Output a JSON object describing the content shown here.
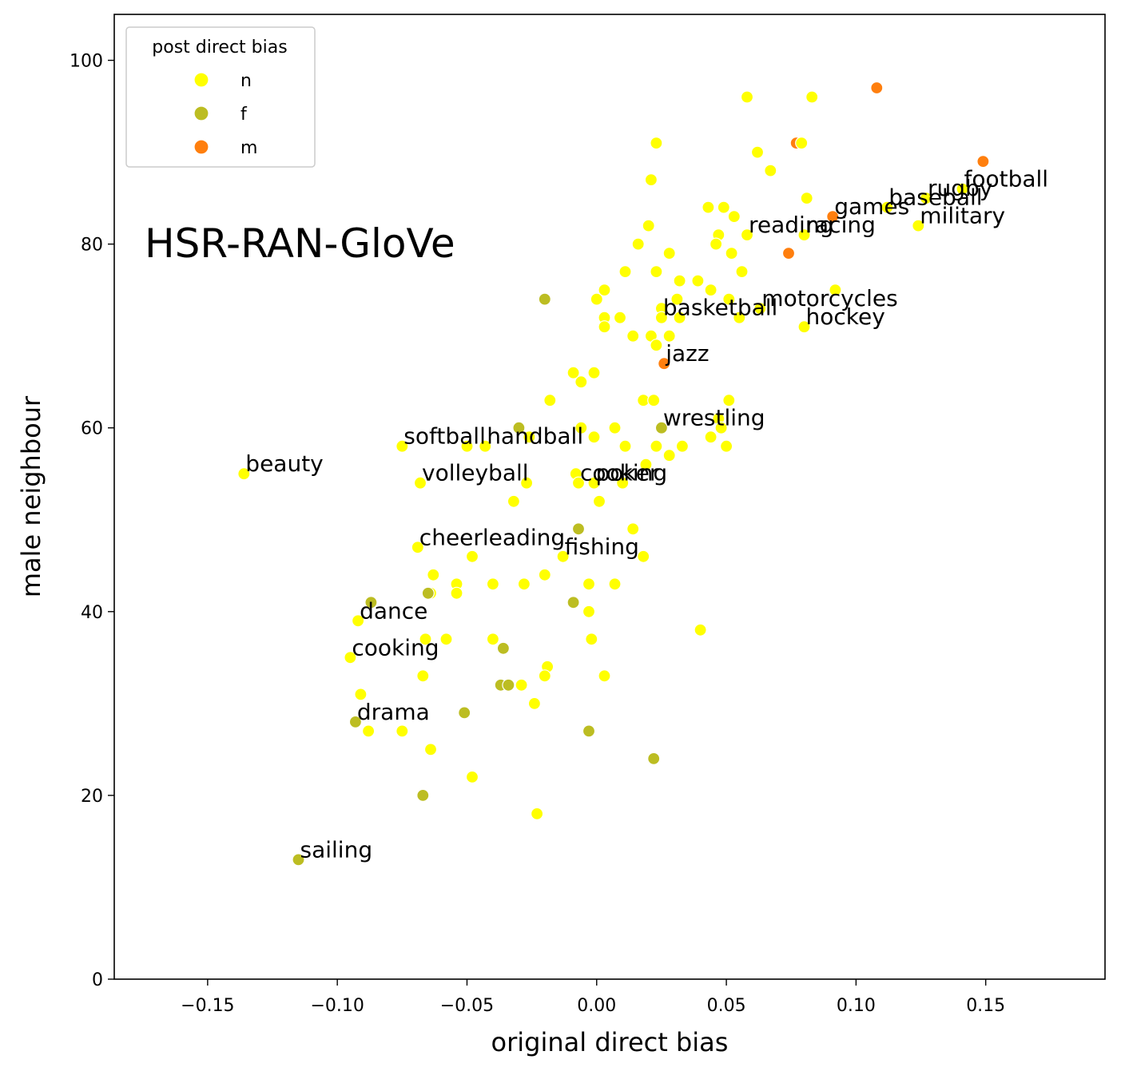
{
  "chart_data": {
    "type": "scatter",
    "title": "HSR-RAN-GloVe",
    "xlabel": "original direct bias",
    "ylabel": "male neighbour",
    "xlim": [
      -0.186,
      0.196
    ],
    "ylim": [
      0,
      105
    ],
    "xticks": [
      -0.15,
      -0.1,
      -0.05,
      0.0,
      0.05,
      0.1,
      0.15
    ],
    "xtick_labels": [
      "−0.15",
      "−0.10",
      "−0.05",
      "0.00",
      "0.05",
      "0.10",
      "0.15"
    ],
    "yticks": [
      0,
      20,
      40,
      60,
      80,
      100
    ],
    "ytick_labels": [
      "0",
      "20",
      "40",
      "60",
      "80",
      "100"
    ],
    "grid": false,
    "legend": {
      "title": "post direct bias",
      "placement": "top-left",
      "entries": [
        {
          "key": "n",
          "label": "n",
          "color": "#ffff00"
        },
        {
          "key": "f",
          "label": "f",
          "color": "#bcbd22"
        },
        {
          "key": "m",
          "label": "m",
          "color": "#ff7f0e"
        }
      ]
    },
    "points": [
      {
        "x": 0.108,
        "y": 97,
        "c": "m"
      },
      {
        "x": 0.149,
        "y": 89,
        "c": "m"
      },
      {
        "x": 0.077,
        "y": 91,
        "c": "m"
      },
      {
        "x": 0.091,
        "y": 83,
        "c": "m"
      },
      {
        "x": 0.074,
        "y": 79,
        "c": "m"
      },
      {
        "x": 0.026,
        "y": 67,
        "c": "m"
      },
      {
        "x": 0.058,
        "y": 96,
        "c": "n"
      },
      {
        "x": 0.083,
        "y": 96,
        "c": "n"
      },
      {
        "x": 0.023,
        "y": 91,
        "c": "n"
      },
      {
        "x": 0.079,
        "y": 91,
        "c": "n"
      },
      {
        "x": 0.062,
        "y": 90,
        "c": "n"
      },
      {
        "x": 0.067,
        "y": 88,
        "c": "n"
      },
      {
        "x": 0.021,
        "y": 87,
        "c": "n"
      },
      {
        "x": 0.141,
        "y": 86,
        "c": "n"
      },
      {
        "x": 0.081,
        "y": 85,
        "c": "n"
      },
      {
        "x": 0.127,
        "y": 85,
        "c": "n"
      },
      {
        "x": 0.043,
        "y": 84,
        "c": "n"
      },
      {
        "x": 0.049,
        "y": 84,
        "c": "n"
      },
      {
        "x": 0.112,
        "y": 84,
        "c": "n"
      },
      {
        "x": 0.053,
        "y": 83,
        "c": "n"
      },
      {
        "x": 0.02,
        "y": 82,
        "c": "n"
      },
      {
        "x": 0.124,
        "y": 82,
        "c": "n"
      },
      {
        "x": 0.047,
        "y": 81,
        "c": "n"
      },
      {
        "x": 0.058,
        "y": 81,
        "c": "n"
      },
      {
        "x": 0.08,
        "y": 81,
        "c": "n"
      },
      {
        "x": 0.016,
        "y": 80,
        "c": "n"
      },
      {
        "x": 0.046,
        "y": 80,
        "c": "n"
      },
      {
        "x": 0.028,
        "y": 79,
        "c": "n"
      },
      {
        "x": 0.052,
        "y": 79,
        "c": "n"
      },
      {
        "x": 0.011,
        "y": 77,
        "c": "n"
      },
      {
        "x": 0.023,
        "y": 77,
        "c": "n"
      },
      {
        "x": 0.056,
        "y": 77,
        "c": "n"
      },
      {
        "x": 0.032,
        "y": 76,
        "c": "n"
      },
      {
        "x": 0.039,
        "y": 76,
        "c": "n"
      },
      {
        "x": 0.003,
        "y": 75,
        "c": "n"
      },
      {
        "x": 0.044,
        "y": 75,
        "c": "n"
      },
      {
        "x": 0.092,
        "y": 75,
        "c": "n"
      },
      {
        "x": 0.0,
        "y": 74,
        "c": "n"
      },
      {
        "x": 0.031,
        "y": 74,
        "c": "n"
      },
      {
        "x": 0.051,
        "y": 74,
        "c": "n"
      },
      {
        "x": 0.025,
        "y": 73,
        "c": "n"
      },
      {
        "x": 0.063,
        "y": 73,
        "c": "n"
      },
      {
        "x": 0.003,
        "y": 72,
        "c": "n"
      },
      {
        "x": 0.009,
        "y": 72,
        "c": "n"
      },
      {
        "x": 0.025,
        "y": 72,
        "c": "n"
      },
      {
        "x": 0.032,
        "y": 72,
        "c": "n"
      },
      {
        "x": 0.055,
        "y": 72,
        "c": "n"
      },
      {
        "x": 0.003,
        "y": 71,
        "c": "n"
      },
      {
        "x": 0.08,
        "y": 71,
        "c": "n"
      },
      {
        "x": 0.014,
        "y": 70,
        "c": "n"
      },
      {
        "x": 0.021,
        "y": 70,
        "c": "n"
      },
      {
        "x": 0.028,
        "y": 70,
        "c": "n"
      },
      {
        "x": 0.023,
        "y": 69,
        "c": "n"
      },
      {
        "x": -0.009,
        "y": 66,
        "c": "n"
      },
      {
        "x": -0.001,
        "y": 66,
        "c": "n"
      },
      {
        "x": -0.006,
        "y": 65,
        "c": "n"
      },
      {
        "x": -0.018,
        "y": 63,
        "c": "n"
      },
      {
        "x": 0.018,
        "y": 63,
        "c": "n"
      },
      {
        "x": 0.022,
        "y": 63,
        "c": "n"
      },
      {
        "x": 0.051,
        "y": 63,
        "c": "n"
      },
      {
        "x": 0.047,
        "y": 61,
        "c": "n"
      },
      {
        "x": -0.006,
        "y": 60,
        "c": "n"
      },
      {
        "x": 0.007,
        "y": 60,
        "c": "n"
      },
      {
        "x": 0.048,
        "y": 60,
        "c": "n"
      },
      {
        "x": -0.026,
        "y": 59,
        "c": "n"
      },
      {
        "x": -0.001,
        "y": 59,
        "c": "n"
      },
      {
        "x": 0.044,
        "y": 59,
        "c": "n"
      },
      {
        "x": -0.075,
        "y": 58,
        "c": "n"
      },
      {
        "x": -0.05,
        "y": 58,
        "c": "n"
      },
      {
        "x": -0.043,
        "y": 58,
        "c": "n"
      },
      {
        "x": 0.011,
        "y": 58,
        "c": "n"
      },
      {
        "x": 0.023,
        "y": 58,
        "c": "n"
      },
      {
        "x": 0.033,
        "y": 58,
        "c": "n"
      },
      {
        "x": 0.05,
        "y": 58,
        "c": "n"
      },
      {
        "x": 0.028,
        "y": 57,
        "c": "n"
      },
      {
        "x": 0.019,
        "y": 56,
        "c": "n"
      },
      {
        "x": -0.136,
        "y": 55,
        "c": "n"
      },
      {
        "x": -0.008,
        "y": 55,
        "c": "n"
      },
      {
        "x": -0.068,
        "y": 54,
        "c": "n"
      },
      {
        "x": -0.027,
        "y": 54,
        "c": "n"
      },
      {
        "x": -0.007,
        "y": 54,
        "c": "n"
      },
      {
        "x": -0.001,
        "y": 54,
        "c": "n"
      },
      {
        "x": 0.01,
        "y": 54,
        "c": "n"
      },
      {
        "x": -0.032,
        "y": 52,
        "c": "n"
      },
      {
        "x": 0.001,
        "y": 52,
        "c": "n"
      },
      {
        "x": 0.014,
        "y": 49,
        "c": "n"
      },
      {
        "x": -0.069,
        "y": 47,
        "c": "n"
      },
      {
        "x": -0.048,
        "y": 46,
        "c": "n"
      },
      {
        "x": -0.013,
        "y": 46,
        "c": "n"
      },
      {
        "x": 0.018,
        "y": 46,
        "c": "n"
      },
      {
        "x": -0.063,
        "y": 44,
        "c": "n"
      },
      {
        "x": -0.02,
        "y": 44,
        "c": "n"
      },
      {
        "x": -0.054,
        "y": 43,
        "c": "n"
      },
      {
        "x": -0.04,
        "y": 43,
        "c": "n"
      },
      {
        "x": -0.028,
        "y": 43,
        "c": "n"
      },
      {
        "x": -0.003,
        "y": 43,
        "c": "n"
      },
      {
        "x": 0.007,
        "y": 43,
        "c": "n"
      },
      {
        "x": -0.064,
        "y": 42,
        "c": "n"
      },
      {
        "x": -0.054,
        "y": 42,
        "c": "n"
      },
      {
        "x": -0.003,
        "y": 40,
        "c": "n"
      },
      {
        "x": -0.092,
        "y": 39,
        "c": "n"
      },
      {
        "x": 0.04,
        "y": 38,
        "c": "n"
      },
      {
        "x": -0.066,
        "y": 37,
        "c": "n"
      },
      {
        "x": -0.058,
        "y": 37,
        "c": "n"
      },
      {
        "x": -0.04,
        "y": 37,
        "c": "n"
      },
      {
        "x": -0.002,
        "y": 37,
        "c": "n"
      },
      {
        "x": -0.095,
        "y": 35,
        "c": "n"
      },
      {
        "x": -0.019,
        "y": 34,
        "c": "n"
      },
      {
        "x": -0.067,
        "y": 33,
        "c": "n"
      },
      {
        "x": -0.02,
        "y": 33,
        "c": "n"
      },
      {
        "x": 0.003,
        "y": 33,
        "c": "n"
      },
      {
        "x": -0.029,
        "y": 32,
        "c": "n"
      },
      {
        "x": -0.091,
        "y": 31,
        "c": "n"
      },
      {
        "x": -0.024,
        "y": 30,
        "c": "n"
      },
      {
        "x": -0.088,
        "y": 27,
        "c": "n"
      },
      {
        "x": -0.075,
        "y": 27,
        "c": "n"
      },
      {
        "x": -0.064,
        "y": 25,
        "c": "n"
      },
      {
        "x": -0.048,
        "y": 22,
        "c": "n"
      },
      {
        "x": -0.023,
        "y": 18,
        "c": "n"
      },
      {
        "x": -0.02,
        "y": 74,
        "c": "f"
      },
      {
        "x": -0.03,
        "y": 60,
        "c": "f"
      },
      {
        "x": 0.025,
        "y": 60,
        "c": "f"
      },
      {
        "x": -0.007,
        "y": 49,
        "c": "f"
      },
      {
        "x": -0.087,
        "y": 41,
        "c": "f"
      },
      {
        "x": -0.065,
        "y": 42,
        "c": "f"
      },
      {
        "x": -0.009,
        "y": 41,
        "c": "f"
      },
      {
        "x": -0.036,
        "y": 36,
        "c": "f"
      },
      {
        "x": -0.037,
        "y": 32,
        "c": "f"
      },
      {
        "x": -0.034,
        "y": 32,
        "c": "f"
      },
      {
        "x": -0.051,
        "y": 29,
        "c": "f"
      },
      {
        "x": -0.093,
        "y": 28,
        "c": "f"
      },
      {
        "x": -0.003,
        "y": 27,
        "c": "f"
      },
      {
        "x": 0.022,
        "y": 24,
        "c": "f"
      },
      {
        "x": -0.067,
        "y": 20,
        "c": "f"
      },
      {
        "x": -0.115,
        "y": 13,
        "c": "f"
      }
    ],
    "annotations": [
      {
        "text": "football",
        "x": 0.141,
        "y": 86
      },
      {
        "text": "rugby",
        "x": 0.127,
        "y": 85
      },
      {
        "text": "baseball",
        "x": 0.112,
        "y": 84
      },
      {
        "text": "games",
        "x": 0.091,
        "y": 83
      },
      {
        "text": "military",
        "x": 0.124,
        "y": 82
      },
      {
        "text": "reading",
        "x": 0.058,
        "y": 81
      },
      {
        "text": "racing",
        "x": 0.08,
        "y": 81
      },
      {
        "text": "motorcycles",
        "x": 0.063,
        "y": 73
      },
      {
        "text": "basketball",
        "x": 0.025,
        "y": 72
      },
      {
        "text": "hockey",
        "x": 0.08,
        "y": 71
      },
      {
        "text": "jazz",
        "x": 0.026,
        "y": 67
      },
      {
        "text": "wrestling",
        "x": 0.025,
        "y": 60
      },
      {
        "text": "softball",
        "x": -0.075,
        "y": 58
      },
      {
        "text": "handball",
        "x": -0.043,
        "y": 58
      },
      {
        "text": "beauty",
        "x": -0.136,
        "y": 55
      },
      {
        "text": "volleyball",
        "x": -0.068,
        "y": 54
      },
      {
        "text": "cooking",
        "x": -0.007,
        "y": 54
      },
      {
        "text": "poker",
        "x": -0.001,
        "y": 54
      },
      {
        "text": "cheerleading",
        "x": -0.069,
        "y": 47
      },
      {
        "text": "fishing",
        "x": -0.013,
        "y": 46
      },
      {
        "text": "dance",
        "x": -0.092,
        "y": 39
      },
      {
        "text": "cooking",
        "x": -0.095,
        "y": 35
      },
      {
        "text": "drama",
        "x": -0.093,
        "y": 28
      },
      {
        "text": "sailing",
        "x": -0.115,
        "y": 13
      }
    ]
  }
}
